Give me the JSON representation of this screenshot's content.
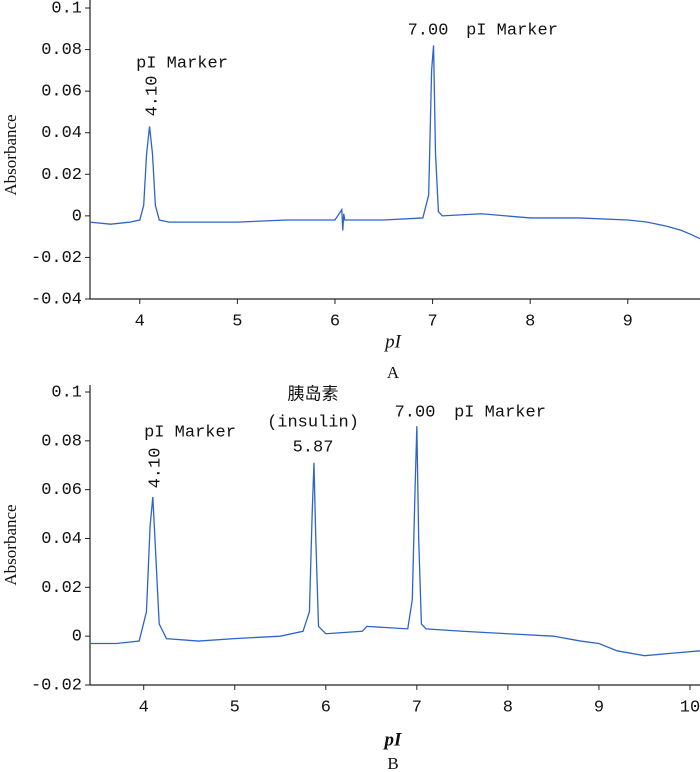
{
  "chart_data": [
    {
      "type": "line",
      "panel_label": "A",
      "xlabel": "pI",
      "ylabel": "Absorbance",
      "color": "#2e64c8",
      "xlim": [
        3.49,
        9.74
      ],
      "ylim": [
        -0.04,
        0.1
      ],
      "xticks": [
        4,
        5,
        6,
        7,
        8,
        9
      ],
      "yticks": [
        -0.04,
        -0.02,
        0,
        0.02,
        0.04,
        0.06,
        0.08,
        0.1
      ],
      "x": [
        3.49,
        3.7,
        3.9,
        4.0,
        4.04,
        4.07,
        4.1,
        4.13,
        4.16,
        4.2,
        4.3,
        4.6,
        5.0,
        5.5,
        6.0,
        6.07,
        6.08,
        6.09,
        6.1,
        6.5,
        6.9,
        6.96,
        6.99,
        7.01,
        7.03,
        7.06,
        7.1,
        7.5,
        8.0,
        8.5,
        9.0,
        9.2,
        9.4,
        9.55,
        9.65,
        9.74
      ],
      "values": [
        -0.003,
        -0.004,
        -0.003,
        -0.002,
        0.005,
        0.03,
        0.043,
        0.03,
        0.005,
        -0.002,
        -0.003,
        -0.003,
        -0.003,
        -0.002,
        -0.002,
        0.003,
        -0.007,
        0.001,
        -0.002,
        -0.002,
        -0.001,
        0.01,
        0.07,
        0.082,
        0.03,
        0.002,
        0.0,
        0.001,
        -0.001,
        -0.001,
        -0.002,
        -0.003,
        -0.005,
        -0.007,
        -0.009,
        -0.011
      ],
      "annotations": [
        "pI Marker",
        "4.10",
        "7.00",
        "pI Marker"
      ]
    },
    {
      "type": "line",
      "panel_label": "B",
      "xlabel": "pI",
      "ylabel": "Absorbance",
      "color": "#2e64c8",
      "xlim": [
        3.41,
        10.11
      ],
      "ylim": [
        -0.02,
        0.1
      ],
      "xticks": [
        4,
        5,
        6,
        7,
        8,
        9,
        10
      ],
      "yticks": [
        -0.02,
        0,
        0.02,
        0.04,
        0.06,
        0.08,
        0.1
      ],
      "x": [
        3.41,
        3.7,
        3.95,
        4.03,
        4.07,
        4.1,
        4.13,
        4.17,
        4.25,
        4.6,
        5.0,
        5.5,
        5.75,
        5.82,
        5.85,
        5.87,
        5.89,
        5.92,
        6.0,
        6.4,
        6.45,
        6.9,
        6.95,
        6.98,
        7.0,
        7.02,
        7.05,
        7.1,
        7.5,
        8.0,
        8.5,
        8.8,
        9.0,
        9.2,
        9.5,
        9.8,
        10.11
      ],
      "values": [
        -0.003,
        -0.003,
        -0.002,
        0.01,
        0.045,
        0.057,
        0.035,
        0.005,
        -0.001,
        -0.002,
        -0.001,
        0.0,
        0.002,
        0.01,
        0.05,
        0.071,
        0.04,
        0.004,
        0.001,
        0.002,
        0.004,
        0.003,
        0.015,
        0.06,
        0.086,
        0.04,
        0.005,
        0.003,
        0.002,
        0.001,
        0.0,
        -0.002,
        -0.003,
        -0.006,
        -0.008,
        -0.007,
        -0.006
      ],
      "annotations": [
        "pI Marker",
        "4.10",
        "胰岛素",
        "(insulin)",
        "5.87",
        "7.00",
        "pI Marker"
      ]
    }
  ]
}
